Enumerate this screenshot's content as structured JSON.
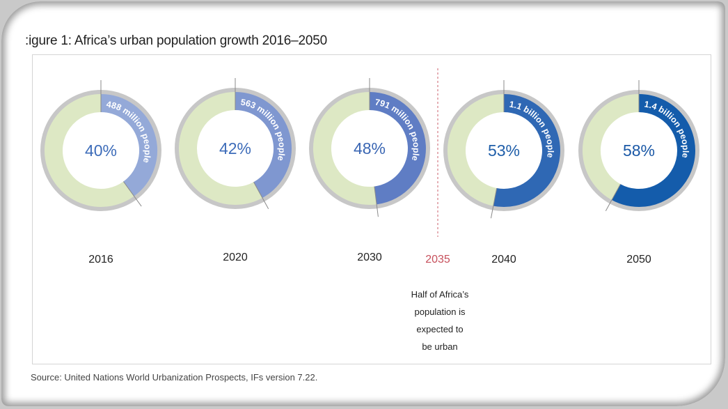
{
  "figure": {
    "title": ":igure 1: Africa’s urban population growth 2016–2050",
    "source": "Source: United Nations World Urbanization Prospects, IFs version 7.22.",
    "note_lines": [
      "Half of Africa’s",
      "population is",
      "expected to",
      "be urban"
    ]
  },
  "chart_data": {
    "type": "donut",
    "title": ":igure 1: Africa’s urban population growth 2016–2050",
    "categories": [
      "2016",
      "2020",
      "2030",
      "2040",
      "2050"
    ],
    "series": [
      {
        "name": "Urban share",
        "values": [
          40,
          42,
          48,
          53,
          58
        ],
        "unit": "%"
      }
    ],
    "percent_labels": [
      "40%",
      "42%",
      "48%",
      "53%",
      "58%"
    ],
    "arc_labels": [
      "488 million people",
      "563 million people",
      "791 million people",
      "1.1 billion people",
      "1.4 billion people"
    ],
    "marker": {
      "label": "2035",
      "description": "Half of Africa’s population is expected to be urban"
    },
    "colors": {
      "urban_arcs": [
        "#94a9d8",
        "#7f97d0",
        "#5f7dc4",
        "#2f68b4",
        "#145cab"
      ],
      "percent_text": [
        "#3d6cb9",
        "#3d6cb9",
        "#3a66b3",
        "#1f5ea9",
        "#1a58a6"
      ],
      "rural": "#dde8c4",
      "outer_ring": "#c7c7c7",
      "marker_line": "#d47a84",
      "year_marker_text": "#c7505c"
    }
  }
}
